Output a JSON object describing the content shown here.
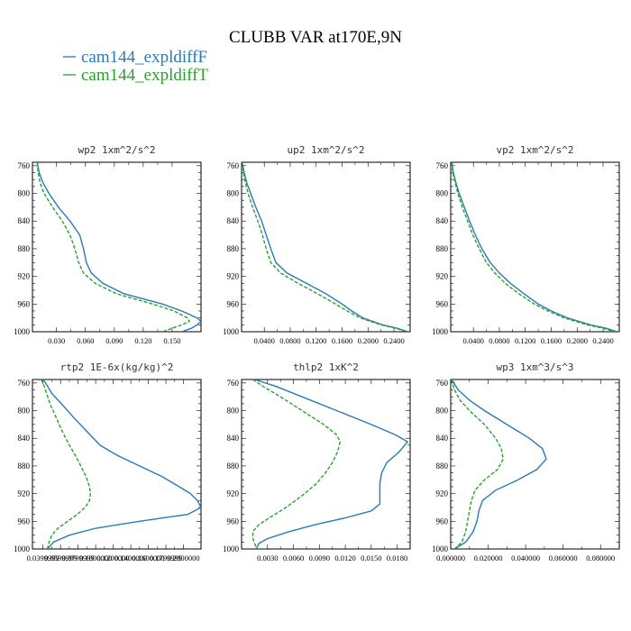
{
  "figure_title": "CLUBB VAR at170E,9N",
  "legend": [
    {
      "label": "cam144_expldiffF",
      "color": "#2a7ab5"
    },
    {
      "label": "cam144_expldiffT",
      "color": "#2ca02c"
    }
  ],
  "chart_data": [
    {
      "type": "line",
      "title": "wp2  1xm^2/s^2",
      "xlim": [
        0.005,
        0.18
      ],
      "ylim": [
        1000,
        755
      ],
      "y_ticks": [
        760,
        800,
        840,
        880,
        920,
        960,
        1000
      ],
      "x_ticks": [
        0.03,
        0.06,
        0.09,
        0.12,
        0.15
      ],
      "x_tick_labels": [
        "0.030",
        "0.060",
        "0.090",
        "0.120",
        "0.150"
      ],
      "y": [
        755,
        770,
        785,
        800,
        820,
        840,
        860,
        880,
        900,
        915,
        930,
        945,
        960,
        970,
        980,
        985,
        990,
        995,
        1000
      ],
      "series": [
        {
          "name": "cam144_expldiffF",
          "color": "#2a7ab5",
          "dash": "none",
          "values": [
            0.01,
            0.012,
            0.016,
            0.022,
            0.032,
            0.044,
            0.054,
            0.058,
            0.061,
            0.066,
            0.078,
            0.1,
            0.14,
            0.16,
            0.176,
            0.18,
            0.176,
            0.17,
            0.16
          ]
        },
        {
          "name": "cam144_expldiffT",
          "color": "#2ca02c",
          "dash": "4,2",
          "values": [
            0.01,
            0.011,
            0.013,
            0.017,
            0.026,
            0.036,
            0.044,
            0.049,
            0.053,
            0.058,
            0.07,
            0.092,
            0.13,
            0.152,
            0.166,
            0.168,
            0.16,
            0.15,
            0.14
          ]
        }
      ]
    },
    {
      "type": "line",
      "title": "up2  1xm^2/s^2",
      "xlim": [
        0.005,
        0.265
      ],
      "ylim": [
        1000,
        755
      ],
      "y_ticks": [
        760,
        800,
        840,
        880,
        920,
        960,
        1000
      ],
      "x_ticks": [
        0.04,
        0.08,
        0.12,
        0.16,
        0.2,
        0.24
      ],
      "x_tick_labels": [
        "0.0400",
        "0.0800",
        "0.1200",
        "0.1600",
        "0.2000",
        "0.2400"
      ],
      "y": [
        755,
        770,
        785,
        800,
        820,
        840,
        860,
        880,
        900,
        915,
        930,
        945,
        960,
        970,
        980,
        990,
        995,
        1000
      ],
      "series": [
        {
          "name": "cam144_expldiffF",
          "color": "#2a7ab5",
          "dash": "none",
          "values": [
            0.006,
            0.009,
            0.013,
            0.019,
            0.027,
            0.036,
            0.043,
            0.05,
            0.058,
            0.075,
            0.105,
            0.135,
            0.16,
            0.175,
            0.192,
            0.222,
            0.245,
            0.262
          ]
        },
        {
          "name": "cam144_expldiffT",
          "color": "#2ca02c",
          "dash": "4,2",
          "values": [
            0.006,
            0.008,
            0.011,
            0.015,
            0.022,
            0.03,
            0.037,
            0.043,
            0.05,
            0.065,
            0.092,
            0.122,
            0.15,
            0.168,
            0.188,
            0.22,
            0.243,
            0.26
          ]
        }
      ]
    },
    {
      "type": "line",
      "title": "vp2  1xm^2/s^2",
      "xlim": [
        0.005,
        0.265
      ],
      "ylim": [
        1000,
        755
      ],
      "y_ticks": [
        760,
        800,
        840,
        880,
        920,
        960,
        1000
      ],
      "x_ticks": [
        0.04,
        0.08,
        0.12,
        0.16,
        0.2,
        0.24
      ],
      "x_tick_labels": [
        "0.0400",
        "0.0800",
        "0.1200",
        "0.1600",
        "0.2000",
        "0.2400"
      ],
      "y": [
        755,
        770,
        785,
        800,
        820,
        840,
        860,
        880,
        900,
        915,
        930,
        945,
        960,
        970,
        980,
        990,
        995,
        1000
      ],
      "series": [
        {
          "name": "cam144_expldiffF",
          "color": "#2a7ab5",
          "dash": "none",
          "values": [
            0.007,
            0.009,
            0.013,
            0.018,
            0.026,
            0.034,
            0.043,
            0.053,
            0.066,
            0.08,
            0.097,
            0.118,
            0.14,
            0.16,
            0.185,
            0.22,
            0.245,
            0.262
          ]
        },
        {
          "name": "cam144_expldiffT",
          "color": "#2ca02c",
          "dash": "4,2",
          "values": [
            0.007,
            0.008,
            0.012,
            0.016,
            0.023,
            0.031,
            0.039,
            0.049,
            0.06,
            0.073,
            0.089,
            0.11,
            0.134,
            0.155,
            0.18,
            0.215,
            0.24,
            0.258
          ]
        }
      ]
    },
    {
      "type": "line",
      "title": "rtp2  1E-6x(kg/kg)^2",
      "xlim": [
        0.028,
        0.22
      ],
      "ylim": [
        1000,
        755
      ],
      "y_ticks": [
        760,
        800,
        840,
        880,
        920,
        960,
        1000
      ],
      "x_ticks": [
        0.04,
        0.06,
        0.08,
        0.1,
        0.12,
        0.14,
        0.16,
        0.18,
        0.2
      ],
      "x_tick_labels": [
        "0.0399999",
        "0.0599999",
        "0.0799999",
        "0.1000000",
        "0.1200000",
        "0.1400000",
        "0.1600000",
        "0.1799999",
        "0.2000000"
      ],
      "y": [
        755,
        760,
        775,
        790,
        810,
        830,
        850,
        865,
        880,
        895,
        910,
        920,
        930,
        940,
        950,
        960,
        970,
        980,
        990,
        1000
      ],
      "series": [
        {
          "name": "cam144_expldiffF",
          "color": "#2a7ab5",
          "dash": "none",
          "values": [
            0.04,
            0.043,
            0.05,
            0.061,
            0.075,
            0.09,
            0.105,
            0.125,
            0.15,
            0.175,
            0.195,
            0.208,
            0.216,
            0.22,
            0.205,
            0.15,
            0.1,
            0.07,
            0.052,
            0.045
          ]
        },
        {
          "name": "cam144_expldiffT",
          "color": "#2ca02c",
          "dash": "4,2",
          "values": [
            0.038,
            0.04,
            0.044,
            0.048,
            0.055,
            0.062,
            0.07,
            0.077,
            0.083,
            0.089,
            0.093,
            0.094,
            0.093,
            0.088,
            0.079,
            0.068,
            0.057,
            0.05,
            0.047,
            0.045
          ]
        }
      ]
    },
    {
      "type": "line",
      "title": "thlp2  1xK^2",
      "xlim": [
        0.0,
        0.0195
      ],
      "ylim": [
        1000,
        755
      ],
      "y_ticks": [
        760,
        800,
        840,
        880,
        920,
        960,
        1000
      ],
      "x_ticks": [
        0.003,
        0.006,
        0.009,
        0.012,
        0.015,
        0.018
      ],
      "x_tick_labels": [
        "0.0030",
        "0.0060",
        "0.0090",
        "0.0120",
        "0.0150",
        "0.0180"
      ],
      "y": [
        755,
        765,
        780,
        800,
        820,
        835,
        845,
        860,
        875,
        890,
        905,
        920,
        935,
        945,
        955,
        965,
        975,
        985,
        992,
        1000
      ],
      "series": [
        {
          "name": "cam144_expldiffF",
          "color": "#2a7ab5",
          "dash": "none",
          "values": [
            0.0015,
            0.004,
            0.007,
            0.011,
            0.015,
            0.0178,
            0.0192,
            0.0182,
            0.0168,
            0.0162,
            0.016,
            0.016,
            0.016,
            0.015,
            0.012,
            0.0085,
            0.0055,
            0.003,
            0.002,
            0.0017
          ]
        },
        {
          "name": "cam144_expldiffT",
          "color": "#2ca02c",
          "dash": "4,2",
          "values": [
            0.0013,
            0.0025,
            0.0045,
            0.007,
            0.0095,
            0.011,
            0.0114,
            0.0111,
            0.0105,
            0.0097,
            0.0087,
            0.0073,
            0.0057,
            0.0045,
            0.0032,
            0.002,
            0.0013,
            0.0013,
            0.0015,
            0.0018
          ]
        }
      ]
    },
    {
      "type": "line",
      "title": "wp3  1xm^3/s^3",
      "xlim": [
        0.0,
        0.09
      ],
      "ylim": [
        1000,
        755
      ],
      "y_ticks": [
        760,
        800,
        840,
        880,
        920,
        960,
        1000
      ],
      "x_ticks": [
        0.0,
        0.02,
        0.04,
        0.06,
        0.08
      ],
      "x_tick_labels": [
        "0.000000",
        "0.020000",
        "0.040000",
        "0.060000",
        "0.080000"
      ],
      "y": [
        755,
        770,
        785,
        800,
        820,
        840,
        855,
        870,
        885,
        900,
        915,
        930,
        945,
        960,
        975,
        990,
        1000
      ],
      "series": [
        {
          "name": "cam144_expldiffF",
          "color": "#2a7ab5",
          "dash": "none",
          "values": [
            0.0005,
            0.004,
            0.01,
            0.018,
            0.03,
            0.042,
            0.049,
            0.051,
            0.046,
            0.036,
            0.024,
            0.017,
            0.015,
            0.014,
            0.012,
            0.008,
            0.002
          ]
        },
        {
          "name": "cam144_expldiffT",
          "color": "#2ca02c",
          "dash": "4,2",
          "values": [
            0.0003,
            0.002,
            0.005,
            0.01,
            0.018,
            0.024,
            0.027,
            0.028,
            0.025,
            0.018,
            0.013,
            0.011,
            0.01,
            0.009,
            0.008,
            0.006,
            0.002
          ]
        }
      ]
    }
  ]
}
